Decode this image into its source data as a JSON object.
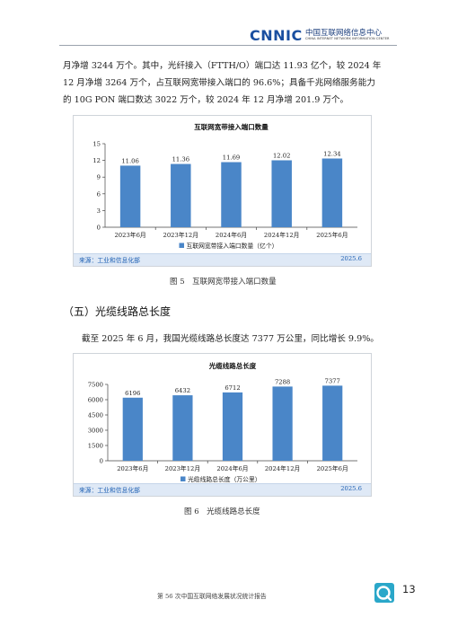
{
  "header": {
    "logo_word": "CNNIC",
    "logo_cn": "中国互联网络信息中心",
    "logo_en": "CHINA INTERNET NETWORK INFORMATION CENTER"
  },
  "intro": {
    "line1": "月净增 3244 万个。其中，光纤接入（FTTH/O）端口达 11.93 亿个，较 2024 年",
    "line2": "12 月净增 3264 万个，占互联网宽带接入端口的 96.6%；具备千兆网络服务能力",
    "line3": "的 10G PON 端口数达 3022 万个，较 2024 年 12 月净增 201.9 万个。"
  },
  "figure5": {
    "caption": "图 5　互联网宽带接入端口数量",
    "source": "来源：工业和信息化部",
    "date": "2025.6"
  },
  "section": {
    "heading": "（五）光缆线路总长度",
    "text": "截至 2025 年 6 月，我国光缆线路总长度达 7377 万公里，同比增长 9.9%。"
  },
  "figure6": {
    "caption": "图 6　光缆线路总长度",
    "source": "来源：工业和信息化部",
    "date": "2025.6"
  },
  "footer": {
    "text": "第 56 次中国互联网络发展状况统计报告",
    "page": "13"
  },
  "chart_data": [
    {
      "type": "bar",
      "title": "互联网宽带接入端口数量",
      "categories": [
        "2023年6月",
        "2023年12月",
        "2024年6月",
        "2024年12月",
        "2025年6月"
      ],
      "series": [
        {
          "name": "互联网宽带接入端口数量（亿个）",
          "values": [
            11.06,
            11.36,
            11.69,
            12.02,
            12.34
          ]
        }
      ],
      "value_labels": [
        "11.06",
        "11.36",
        "11.69",
        "12.02",
        "12.34"
      ],
      "ylim": [
        0,
        15
      ],
      "yticks": [
        "0",
        "3",
        "6",
        "9",
        "12",
        "15"
      ],
      "color": "#4a86c8",
      "legend": "bottom",
      "grid": false
    },
    {
      "type": "bar",
      "title": "光缆线路总长度",
      "categories": [
        "2023年6月",
        "2023年12月",
        "2024年6月",
        "2024年12月",
        "2025年6月"
      ],
      "series": [
        {
          "name": "光缆线路总长度（万公里）",
          "values": [
            6196,
            6432,
            6712,
            7288,
            7377
          ]
        }
      ],
      "value_labels": [
        "6196",
        "6432",
        "6712",
        "7288",
        "7377"
      ],
      "ylim": [
        0,
        7500
      ],
      "yticks": [
        "0",
        "1500",
        "3000",
        "4500",
        "6000",
        "7500"
      ],
      "color": "#4a86c8",
      "legend": "bottom",
      "grid": false
    }
  ]
}
